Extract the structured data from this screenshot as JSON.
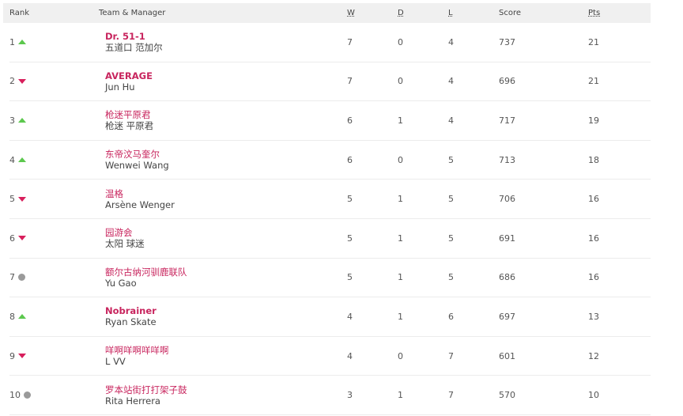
{
  "header": {
    "rank": "Rank",
    "team": "Team & Manager",
    "w": "W",
    "d": "D",
    "l": "L",
    "score": "Score",
    "pts": "Pts"
  },
  "colors": {
    "team": "#c8255e",
    "up": "#5cc84e",
    "down": "#d81f5c",
    "same": "#9a9a9a"
  },
  "rows": [
    {
      "rank": "1",
      "movement": "up",
      "team": "Dr. 51-1",
      "bold": true,
      "manager": "五道口 范加尔",
      "w": "7",
      "d": "0",
      "l": "4",
      "score": "737",
      "pts": "21"
    },
    {
      "rank": "2",
      "movement": "down",
      "team": "AVERAGE",
      "bold": true,
      "manager": "Jun Hu",
      "w": "7",
      "d": "0",
      "l": "4",
      "score": "696",
      "pts": "21"
    },
    {
      "rank": "3",
      "movement": "up",
      "team": "枪迷平原君",
      "bold": false,
      "manager": "枪迷 平原君",
      "w": "6",
      "d": "1",
      "l": "4",
      "score": "717",
      "pts": "19"
    },
    {
      "rank": "4",
      "movement": "up",
      "team": "东帝汶马奎尔",
      "bold": false,
      "manager": "Wenwei Wang",
      "w": "6",
      "d": "0",
      "l": "5",
      "score": "713",
      "pts": "18"
    },
    {
      "rank": "5",
      "movement": "down",
      "team": "温格",
      "bold": false,
      "manager": "Arsène Wenger",
      "w": "5",
      "d": "1",
      "l": "5",
      "score": "706",
      "pts": "16"
    },
    {
      "rank": "6",
      "movement": "down",
      "team": "园游会",
      "bold": false,
      "manager": "太阳 球迷",
      "w": "5",
      "d": "1",
      "l": "5",
      "score": "691",
      "pts": "16"
    },
    {
      "rank": "7",
      "movement": "same",
      "team": "额尔古纳河驯鹿联队",
      "bold": false,
      "manager": "Yu Gao",
      "w": "5",
      "d": "1",
      "l": "5",
      "score": "686",
      "pts": "16"
    },
    {
      "rank": "8",
      "movement": "up",
      "team": "Nobrainer",
      "bold": true,
      "manager": "Ryan Skate",
      "w": "4",
      "d": "1",
      "l": "6",
      "score": "697",
      "pts": "13"
    },
    {
      "rank": "9",
      "movement": "down",
      "team": "咩啊咩啊咩咩啊",
      "bold": false,
      "manager": "L VV",
      "w": "4",
      "d": "0",
      "l": "7",
      "score": "601",
      "pts": "12"
    },
    {
      "rank": "10",
      "movement": "same",
      "team": "罗本站街打打架子鼓",
      "bold": false,
      "manager": "Rita Herrera",
      "w": "3",
      "d": "1",
      "l": "7",
      "score": "570",
      "pts": "10"
    }
  ]
}
